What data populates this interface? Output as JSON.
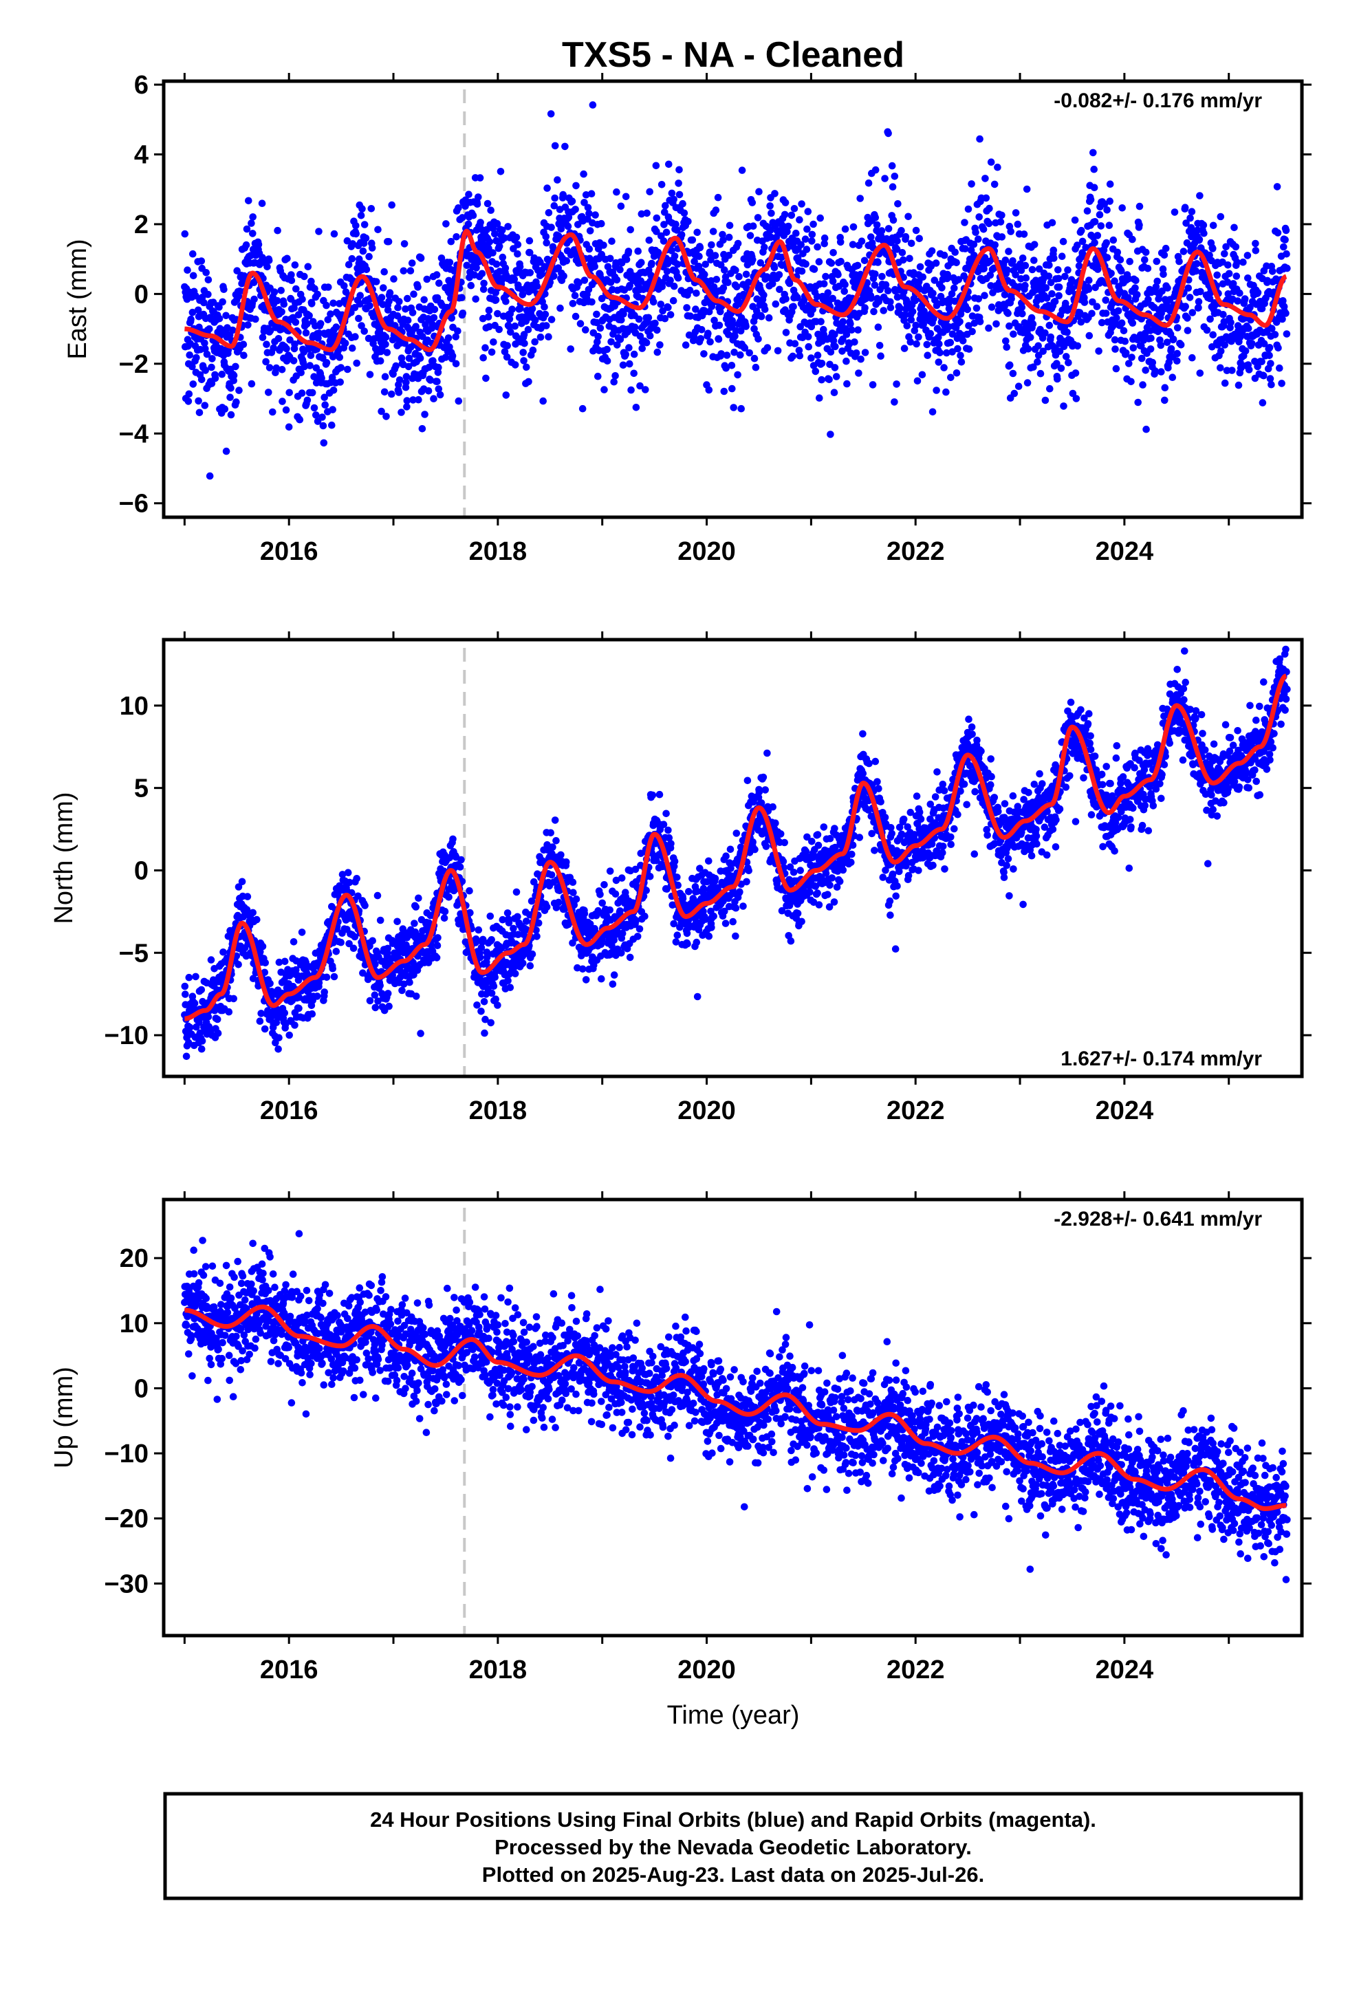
{
  "title": "TXS5  - NA - Cleaned",
  "x_axis_label": "Time (year)",
  "footer": {
    "line1": "24 Hour Positions Using Final Orbits (blue) and Rapid Orbits (magenta).",
    "line2": "Processed by the Nevada Geodetic Laboratory.",
    "line3": "Plotted on 2025-Aug-23. Last data on 2025-Jul-26."
  },
  "colors": {
    "points": "#0000ff",
    "model": "#ff1a1a",
    "equipment_change": "#c8c8c8",
    "axes": "#000000"
  },
  "chart_data": [
    {
      "type": "scatter",
      "component": "East",
      "ylabel": "East (mm)",
      "rate_label": "-0.082+/- 0.176 mm/yr",
      "rate_position": "top-right",
      "xlim": [
        2014.8,
        2025.7
      ],
      "ylim": [
        -6.4,
        6.1
      ],
      "yticks": [
        -6,
        -4,
        -2,
        0,
        2,
        4,
        6
      ],
      "xticks": [
        2016,
        2018,
        2020,
        2022,
        2024
      ],
      "xtick_labels": [
        "2016",
        "2018",
        "2020",
        "2022",
        "2024"
      ],
      "equipment_change_x": 2017.68,
      "grid": false,
      "model": {
        "x": [
          2015.0,
          2015.25,
          2015.45,
          2015.65,
          2015.9,
          2016.2,
          2016.4,
          2016.7,
          2016.95,
          2017.15,
          2017.35,
          2017.55,
          2017.7,
          2017.8,
          2018.0,
          2018.3,
          2018.7,
          2018.9,
          2019.1,
          2019.35,
          2019.7,
          2019.9,
          2020.1,
          2020.3,
          2020.55,
          2020.7,
          2020.85,
          2021.05,
          2021.3,
          2021.7,
          2021.9,
          2022.3,
          2022.7,
          2022.9,
          2023.2,
          2023.45,
          2023.7,
          2023.95,
          2024.2,
          2024.4,
          2024.7,
          2024.95,
          2025.2,
          2025.35,
          2025.55
        ],
        "y": [
          -1.0,
          -1.2,
          -1.5,
          0.6,
          -0.8,
          -1.4,
          -1.6,
          0.5,
          -1.0,
          -1.3,
          -1.6,
          -0.5,
          1.8,
          1.2,
          0.2,
          -0.3,
          1.7,
          0.5,
          -0.1,
          -0.4,
          1.6,
          0.4,
          -0.2,
          -0.5,
          0.7,
          1.5,
          0.4,
          -0.3,
          -0.6,
          1.4,
          0.2,
          -0.7,
          1.3,
          0.1,
          -0.5,
          -0.8,
          1.3,
          -0.2,
          -0.6,
          -0.9,
          1.2,
          -0.3,
          -0.6,
          -0.9,
          0.5
        ]
      },
      "noise_mm": 1.1
    },
    {
      "type": "scatter",
      "component": "North",
      "ylabel": "North (mm)",
      "rate_label": "1.627+/- 0.174 mm/yr",
      "rate_position": "bottom-right",
      "xlim": [
        2014.8,
        2025.7
      ],
      "ylim": [
        -12.5,
        14.0
      ],
      "yticks": [
        -10,
        -5,
        0,
        5,
        10
      ],
      "xticks": [
        2016,
        2018,
        2020,
        2022,
        2024
      ],
      "xtick_labels": [
        "2016",
        "2018",
        "2020",
        "2022",
        "2024"
      ],
      "equipment_change_x": 2017.68,
      "grid": false,
      "model": {
        "x": [
          2015.0,
          2015.2,
          2015.35,
          2015.55,
          2015.85,
          2016.0,
          2016.25,
          2016.55,
          2016.85,
          2017.1,
          2017.3,
          2017.55,
          2017.85,
          2018.1,
          2018.25,
          2018.5,
          2018.85,
          2019.05,
          2019.3,
          2019.5,
          2019.8,
          2020.0,
          2020.25,
          2020.5,
          2020.8,
          2021.05,
          2021.3,
          2021.5,
          2021.8,
          2022.0,
          2022.25,
          2022.5,
          2022.85,
          2023.05,
          2023.3,
          2023.5,
          2023.85,
          2024.0,
          2024.25,
          2024.5,
          2024.85,
          2025.1,
          2025.3,
          2025.55
        ],
        "y": [
          -9.0,
          -8.5,
          -7.5,
          -3.2,
          -8.2,
          -7.5,
          -6.5,
          -1.5,
          -6.5,
          -5.5,
          -4.5,
          0.0,
          -6.2,
          -5.0,
          -4.5,
          0.5,
          -4.5,
          -3.5,
          -2.5,
          2.2,
          -2.8,
          -2.0,
          -1.0,
          3.8,
          -1.2,
          0.0,
          1.0,
          5.3,
          0.5,
          1.5,
          2.5,
          7.0,
          2.0,
          3.0,
          4.0,
          8.7,
          3.5,
          4.5,
          5.5,
          10.0,
          5.3,
          6.5,
          7.5,
          11.8
        ]
      },
      "noise_mm": 1.1
    },
    {
      "type": "scatter",
      "component": "Up",
      "ylabel": "Up (mm)",
      "rate_label": "-2.928+/- 0.641 mm/yr",
      "rate_position": "top-right",
      "xlim": [
        2014.8,
        2025.7
      ],
      "ylim": [
        -38.0,
        29.0
      ],
      "yticks": [
        -30,
        -20,
        -10,
        0,
        10,
        20
      ],
      "xticks": [
        2016,
        2018,
        2020,
        2022,
        2024
      ],
      "xtick_labels": [
        "2016",
        "2018",
        "2020",
        "2022",
        "2024"
      ],
      "equipment_change_x": 2017.68,
      "grid": false,
      "model": {
        "x": [
          2015.0,
          2015.4,
          2015.75,
          2016.1,
          2016.5,
          2016.8,
          2017.1,
          2017.4,
          2017.75,
          2018.0,
          2018.4,
          2018.75,
          2019.1,
          2019.45,
          2019.75,
          2020.1,
          2020.4,
          2020.75,
          2021.1,
          2021.45,
          2021.75,
          2022.1,
          2022.4,
          2022.75,
          2023.1,
          2023.4,
          2023.75,
          2024.1,
          2024.4,
          2024.75,
          2025.1,
          2025.35,
          2025.55
        ],
        "y": [
          12.0,
          9.5,
          12.5,
          8.0,
          6.5,
          9.5,
          6.0,
          3.5,
          7.5,
          4.0,
          2.0,
          5.0,
          1.0,
          -0.5,
          2.0,
          -2.0,
          -4.0,
          -1.0,
          -5.5,
          -6.5,
          -4.0,
          -8.5,
          -10.0,
          -7.5,
          -11.5,
          -13.0,
          -10.0,
          -14.0,
          -15.5,
          -12.5,
          -17.0,
          -18.5,
          -18.0
        ]
      },
      "noise_mm": 3.8
    }
  ]
}
